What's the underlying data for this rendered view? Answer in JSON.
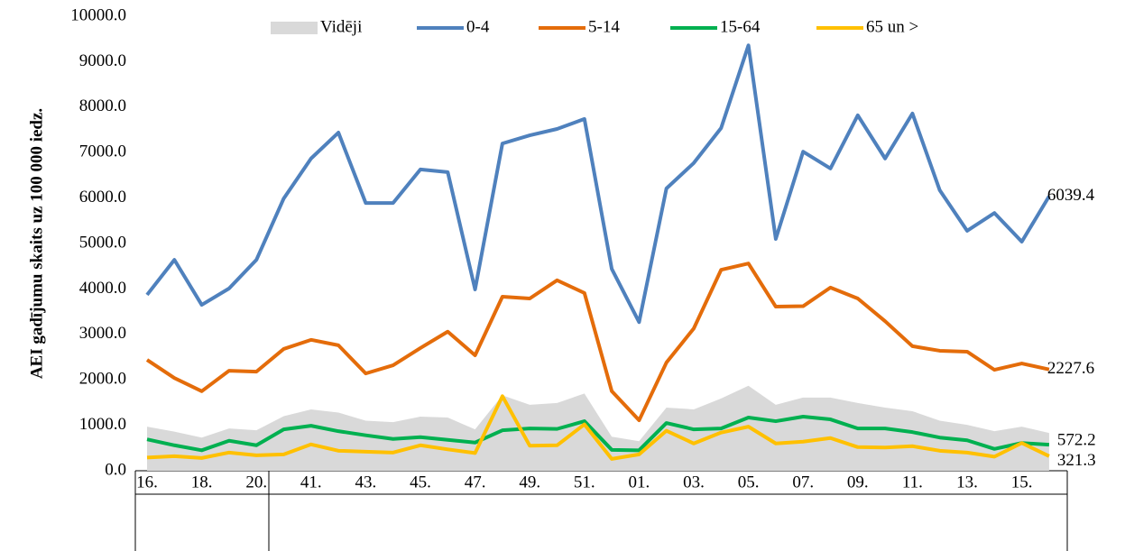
{
  "chart_data": {
    "type": "line",
    "y_label": "AEI gadījumu skaits uz 100 000 iedz.",
    "categories": [
      "16.",
      null,
      "18.",
      null,
      "20.",
      null,
      "41.",
      null,
      "43.",
      null,
      "45.",
      null,
      "47.",
      null,
      "49.",
      null,
      "51.",
      null,
      "01.",
      null,
      "03.",
      null,
      "05.",
      null,
      "07.",
      null,
      "09.",
      null,
      "11.",
      null,
      "13.",
      null,
      "15.",
      null
    ],
    "series": [
      {
        "name": "Vidēji",
        "type": "area",
        "color": "#d9d9d9",
        "values": [
          970,
          860,
          730,
          930,
          890,
          1200,
          1350,
          1280,
          1100,
          1070,
          1190,
          1170,
          910,
          1660,
          1450,
          1490,
          1700,
          750,
          650,
          1390,
          1350,
          1590,
          1870,
          1450,
          1610,
          1610,
          1490,
          1390,
          1310,
          1100,
          1010,
          870,
          970,
          830
        ]
      },
      {
        "name": "0-4",
        "color": "#4f81bd",
        "values": [
          3870,
          4640,
          3650,
          4010,
          4640,
          5990,
          6870,
          7440,
          5890,
          5890,
          6630,
          6570,
          3990,
          7200,
          7380,
          7520,
          7740,
          4440,
          3270,
          6210,
          6770,
          7540,
          9360,
          5100,
          7020,
          6650,
          7820,
          6870,
          7860,
          6170,
          5280,
          5670,
          5040,
          6039.4
        ]
      },
      {
        "name": "5-14",
        "color": "#e46c0a",
        "values": [
          2440,
          2040,
          1750,
          2200,
          2180,
          2680,
          2880,
          2760,
          2140,
          2320,
          2700,
          3060,
          2540,
          3830,
          3790,
          4190,
          3910,
          1750,
          1110,
          2380,
          3130,
          4420,
          4560,
          3610,
          3620,
          4030,
          3790,
          3290,
          2740,
          2640,
          2620,
          2220,
          2360,
          2227.6
        ]
      },
      {
        "name": "15-64",
        "color": "#00b050",
        "values": [
          690,
          560,
          450,
          660,
          560,
          910,
          990,
          870,
          780,
          700,
          740,
          680,
          620,
          890,
          930,
          920,
          1090,
          460,
          450,
          1050,
          910,
          930,
          1170,
          1090,
          1190,
          1130,
          930,
          930,
          850,
          730,
          670,
          480,
          610,
          572.2
        ]
      },
      {
        "name": "65 un >",
        "color": "#ffc000",
        "values": [
          290,
          320,
          280,
          400,
          340,
          360,
          580,
          440,
          420,
          400,
          560,
          470,
          390,
          1640,
          550,
          560,
          1020,
          260,
          360,
          880,
          600,
          840,
          970,
          600,
          640,
          720,
          520,
          510,
          540,
          440,
          400,
          310,
          610,
          321.3
        ]
      }
    ],
    "ylim": [
      0,
      10000
    ],
    "yticks": [
      {
        "value": 0,
        "label": "0.0"
      },
      {
        "value": 1000,
        "label": "1000.0"
      },
      {
        "value": 2000,
        "label": "2000.0"
      },
      {
        "value": 3000,
        "label": "3000.0"
      },
      {
        "value": 4000,
        "label": "4000.0"
      },
      {
        "value": 5000,
        "label": "5000.0"
      },
      {
        "value": 6000,
        "label": "6000.0"
      },
      {
        "value": 7000,
        "label": "7000.0"
      },
      {
        "value": 8000,
        "label": "8000.0"
      },
      {
        "value": 9000,
        "label": "9000.0"
      },
      {
        "value": 10000,
        "label": "10000.0"
      }
    ],
    "legend": "top"
  }
}
